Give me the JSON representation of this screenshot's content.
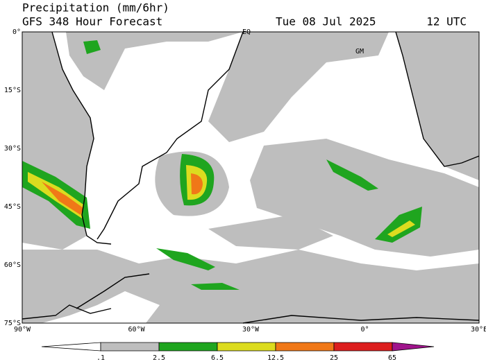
{
  "header": {
    "title": "Precipitation (mm/6hr)",
    "subtitle": "GFS 348 Hour Forecast",
    "date": "Tue 08 Jul 2025",
    "time": "12 UTC"
  },
  "map": {
    "lat_labels": [
      "0°",
      "15°S",
      "30°S",
      "45°S",
      "60°S",
      "75°S"
    ],
    "lon_labels": [
      "90°W",
      "60°W",
      "30°W",
      "0°",
      "30°E"
    ],
    "place_labels": [
      "EQ",
      "GM"
    ]
  },
  "colorbar": {
    "labels": [
      ".1",
      "2.5",
      "6.5",
      "12.5",
      "25",
      "65"
    ],
    "colors": [
      "#ffffff",
      "#bebebe",
      "#1fa51f",
      "#dcdc1f",
      "#f07818",
      "#dc1e1e",
      "#a0148c"
    ]
  }
}
